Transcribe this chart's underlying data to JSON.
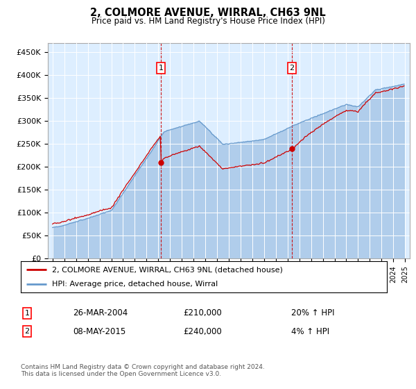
{
  "title": "2, COLMORE AVENUE, WIRRAL, CH63 9NL",
  "subtitle": "Price paid vs. HM Land Registry's House Price Index (HPI)",
  "sale1_date": "26-MAR-2004",
  "sale1_price": 210000,
  "sale1_label": "20% ↑ HPI",
  "sale1_x": 2004.23,
  "sale2_date": "08-MAY-2015",
  "sale2_price": 240000,
  "sale2_label": "4% ↑ HPI",
  "sale2_x": 2015.36,
  "legend_line1": "2, COLMORE AVENUE, WIRRAL, CH63 9NL (detached house)",
  "legend_line2": "HPI: Average price, detached house, Wirral",
  "footer": "Contains HM Land Registry data © Crown copyright and database right 2024.\nThis data is licensed under the Open Government Licence v3.0.",
  "hpi_color": "#a8c8e8",
  "hpi_line_color": "#6699cc",
  "price_color": "#cc0000",
  "background_color": "#ddeeff",
  "ylim": [
    0,
    470000
  ],
  "xlim_start": 1994.6,
  "xlim_end": 2025.4,
  "yticks": [
    0,
    50000,
    100000,
    150000,
    200000,
    250000,
    300000,
    350000,
    400000,
    450000
  ],
  "ytick_labels": [
    "£0",
    "£50K",
    "£100K",
    "£150K",
    "£200K",
    "£250K",
    "£300K",
    "£350K",
    "£400K",
    "£450K"
  ]
}
